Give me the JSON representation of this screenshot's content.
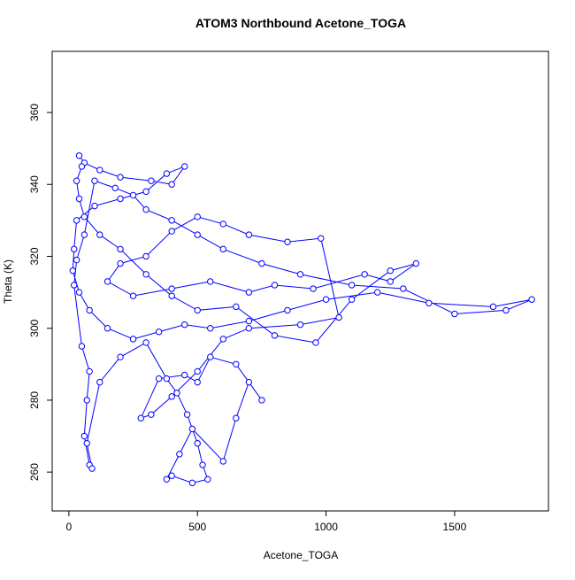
{
  "chart_data": {
    "type": "scatter",
    "connect": true,
    "color": "#0000ff",
    "title": "ATOM3 Northbound Acetone_TOGA",
    "x_label": "Acetone_TOGA",
    "y_label": "Theta (K)",
    "xlim": [
      -65,
      1865
    ],
    "ylim": [
      249.2,
      377
    ],
    "xticks": [
      0,
      500,
      1000,
      1500
    ],
    "yticks": [
      260,
      280,
      300,
      320,
      340,
      360
    ],
    "x": [
      40,
      60,
      120,
      200,
      320,
      400,
      450,
      380,
      300,
      200,
      100,
      30,
      20,
      15,
      40,
      80,
      150,
      250,
      350,
      450,
      550,
      700,
      850,
      1000,
      1200,
      1400,
      1650,
      1800,
      1700,
      1500,
      1300,
      1100,
      900,
      750,
      600,
      500,
      400,
      300,
      250,
      180,
      100,
      60,
      30,
      20,
      50,
      80,
      70,
      60,
      80,
      90,
      70,
      120,
      200,
      300,
      380,
      420,
      460,
      500,
      520,
      540,
      480,
      400,
      380,
      430,
      480,
      600,
      650,
      700,
      750,
      650,
      550,
      500,
      450,
      350,
      280,
      320,
      400,
      500,
      600,
      700,
      900,
      1050,
      980,
      850,
      700,
      600,
      500,
      400,
      300,
      200,
      150,
      250,
      400,
      550,
      700,
      800,
      950,
      1150,
      1250,
      1350,
      1250,
      1100,
      960,
      800,
      650,
      500,
      400,
      300,
      200,
      120,
      60,
      40,
      30,
      50
    ],
    "y": [
      348,
      346,
      344,
      342,
      341,
      340,
      345,
      343,
      338,
      336,
      334,
      330,
      322,
      316,
      310,
      305,
      300,
      297,
      299,
      301,
      300,
      302,
      305,
      308,
      310,
      307,
      306,
      308,
      305,
      304,
      311,
      312,
      315,
      318,
      322,
      326,
      330,
      333,
      337,
      339,
      341,
      326,
      319,
      312,
      295,
      288,
      280,
      270,
      262,
      261,
      268,
      285,
      292,
      296,
      286,
      282,
      276,
      268,
      262,
      258,
      257,
      259,
      258,
      265,
      272,
      263,
      275,
      285,
      280,
      290,
      292,
      285,
      287,
      286,
      275,
      276,
      281,
      288,
      297,
      300,
      301,
      303,
      325,
      324,
      326,
      329,
      331,
      327,
      320,
      318,
      313,
      309,
      311,
      313,
      310,
      312,
      311,
      315,
      313,
      318,
      316,
      308,
      296,
      298,
      306,
      305,
      309,
      315,
      322,
      326,
      331,
      336,
      341,
      345
    ]
  }
}
